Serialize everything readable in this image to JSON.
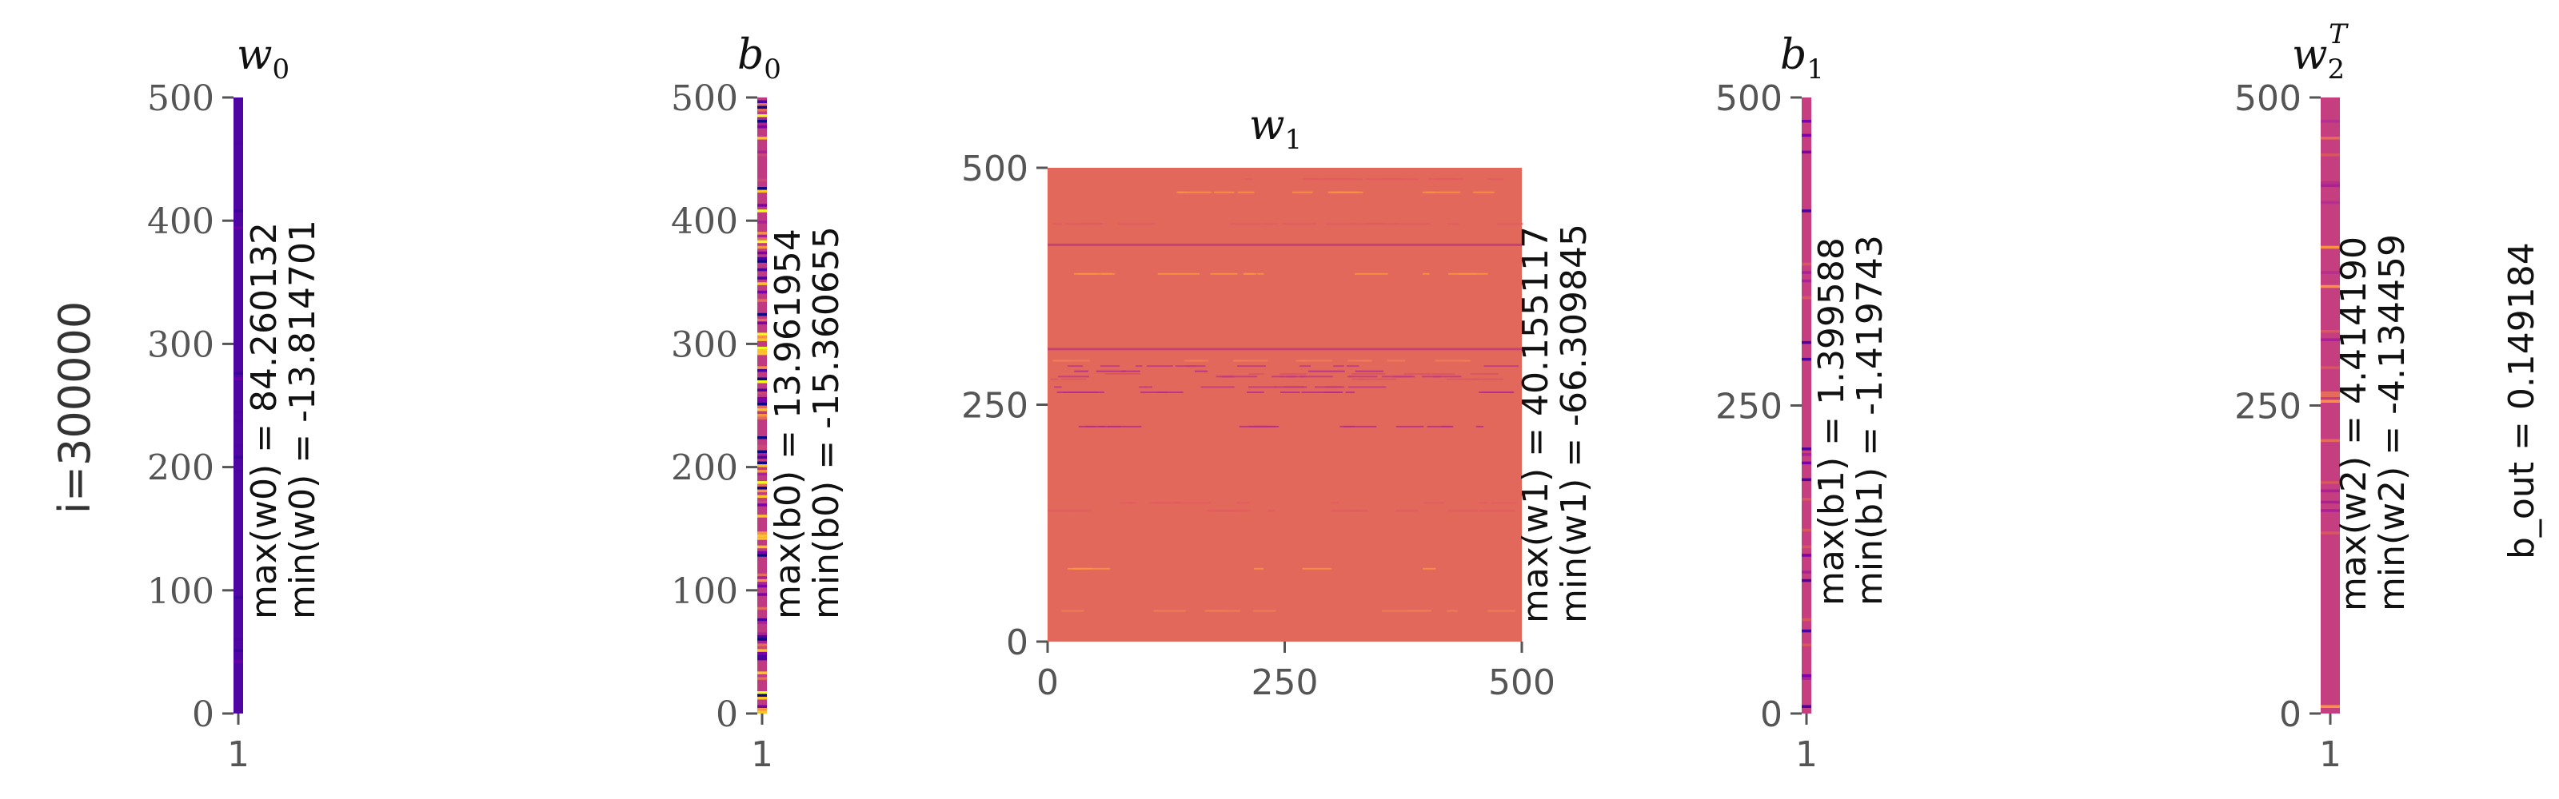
{
  "figure": {
    "row_label": "i=300000",
    "bias_out": "b_out = 0.149184"
  },
  "chart_data": [
    {
      "type": "heatmap",
      "id": "w0",
      "title": "w_0",
      "colormap": "plasma",
      "x_ticks": [
        "1"
      ],
      "y_ticks": [
        "0",
        "100",
        "200",
        "300",
        "400",
        "500"
      ],
      "ylim": [
        0,
        500
      ],
      "dominant_color": "#4f05a3",
      "stats": {
        "max_label": "max(w0) = 84.260132",
        "min_label": "min(w0) = -13.814701"
      }
    },
    {
      "type": "heatmap",
      "id": "b0",
      "title": "b_0",
      "colormap": "plasma",
      "x_ticks": [
        "1"
      ],
      "y_ticks": [
        "0",
        "100",
        "200",
        "300",
        "400",
        "500"
      ],
      "ylim": [
        0,
        500
      ],
      "dominant_color": "#c03a83",
      "stats": {
        "max_label": "max(b0) = 13.961954",
        "min_label": "min(b0) = -15.360655"
      }
    },
    {
      "type": "heatmap",
      "id": "w1",
      "title": "w_1",
      "colormap": "plasma",
      "x_ticks": [
        "0",
        "250",
        "500"
      ],
      "y_ticks": [
        "0",
        "250",
        "500"
      ],
      "xlim": [
        0,
        500
      ],
      "ylim": [
        0,
        500
      ],
      "dominant_color": "#e3685c",
      "stats": {
        "max_label": "max(w1) = 40.155117",
        "min_label": "min(w1) = -66.309845"
      }
    },
    {
      "type": "heatmap",
      "id": "b1",
      "title": "b_1",
      "colormap": "plasma",
      "x_ticks": [
        "1"
      ],
      "y_ticks": [
        "0",
        "250",
        "500"
      ],
      "ylim": [
        0,
        500
      ],
      "dominant_color": "#c73e80",
      "stats": {
        "max_label": "max(b1) = 1.399588",
        "min_label": "min(b1) = -1.419743"
      }
    },
    {
      "type": "heatmap",
      "id": "w2",
      "title": "w_2^T",
      "colormap": "plasma",
      "x_ticks": [
        "1"
      ],
      "y_ticks": [
        "0",
        "250",
        "500"
      ],
      "ylim": [
        0,
        500
      ],
      "dominant_color": "#c53e80",
      "stats": {
        "max_label": "max(w2) = 4.414190",
        "min_label": "min(w2) = -4.134459"
      }
    }
  ]
}
